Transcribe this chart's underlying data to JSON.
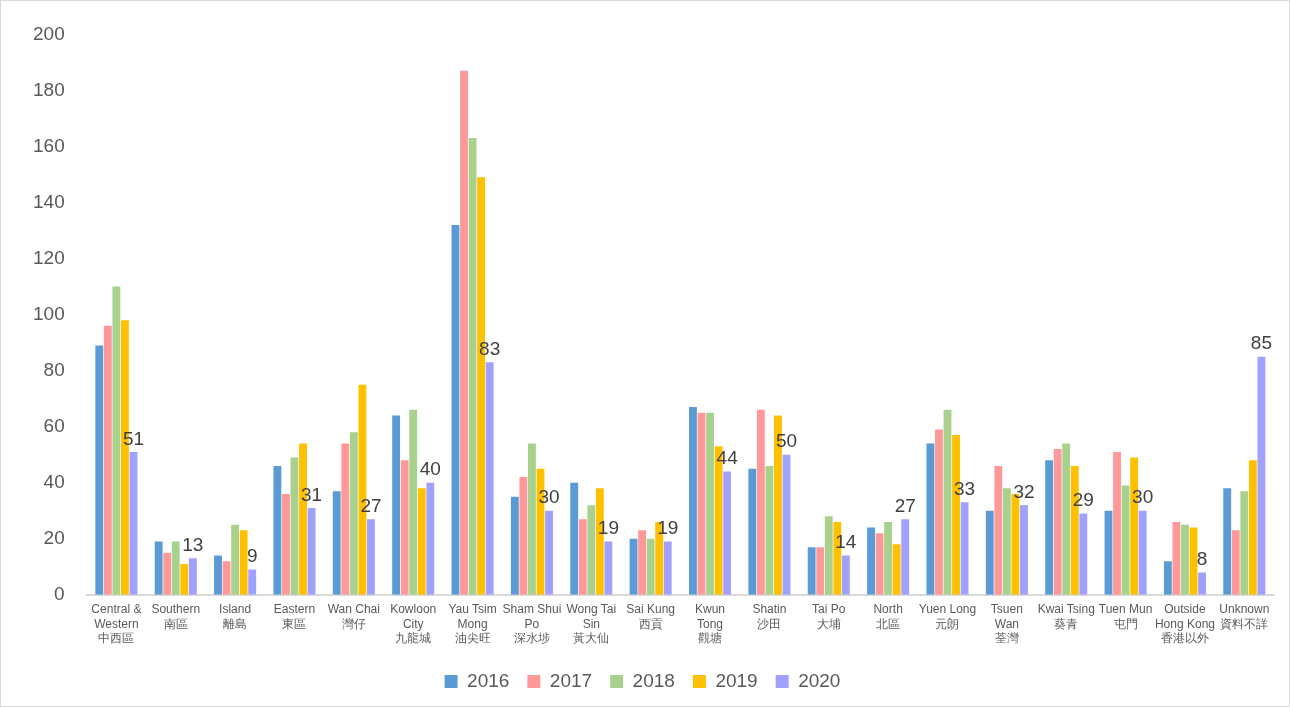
{
  "chart_data": {
    "type": "bar",
    "categories": [
      "Central &\nWestern\n中西區",
      "Southern\n南區",
      "Island\n離島",
      "Eastern\n東區",
      "Wan Chai\n灣仔",
      "Kowloon\nCity\n九龍城",
      "Yau Tsim\nMong\n油尖旺",
      "Sham Shui\nPo\n深水埗",
      "Wong Tai\nSin\n黃大仙",
      "Sai Kung\n西貢",
      "Kwun\nTong\n觀塘",
      "Shatin\n沙田",
      "Tai Po\n大埔",
      "North\n北區",
      "Yuen Long\n元朗",
      "Tsuen\nWan\n荃灣",
      "Kwai Tsing\n葵青",
      "Tuen Mun\n屯門",
      "Outside\nHong Kong\n香港以外",
      "Unknown\n資料不詳"
    ],
    "series": [
      {
        "name": "2016",
        "color": "#5b9bd5",
        "values": [
          89,
          19,
          14,
          46,
          37,
          64,
          132,
          35,
          40,
          20,
          67,
          45,
          17,
          24,
          54,
          30,
          48,
          30,
          12,
          38
        ]
      },
      {
        "name": "2017",
        "color": "#ff9999",
        "values": [
          96,
          15,
          12,
          36,
          54,
          48,
          187,
          42,
          27,
          23,
          65,
          66,
          17,
          22,
          59,
          46,
          52,
          51,
          26,
          23
        ]
      },
      {
        "name": "2018",
        "color": "#a9d18e",
        "values": [
          110,
          19,
          25,
          49,
          58,
          66,
          163,
          54,
          32,
          20,
          65,
          46,
          28,
          26,
          66,
          38,
          54,
          39,
          25,
          37
        ]
      },
      {
        "name": "2019",
        "color": "#ffc000",
        "values": [
          98,
          11,
          23,
          54,
          75,
          38,
          149,
          45,
          38,
          26,
          53,
          64,
          26,
          18,
          57,
          36,
          46,
          49,
          24,
          48
        ]
      },
      {
        "name": "2020",
        "color": "#a0a0ff",
        "values": [
          51,
          13,
          9,
          31,
          27,
          40,
          83,
          30,
          19,
          19,
          44,
          50,
          14,
          27,
          33,
          32,
          29,
          30,
          8,
          85
        ],
        "value_labels": [
          "51",
          "13",
          "9",
          "31",
          "27",
          "40",
          "83",
          "30",
          "19",
          "19",
          "44",
          "50",
          "14",
          "27",
          "33",
          "32",
          "29",
          "30",
          "8",
          "85"
        ]
      }
    ],
    "ylim": [
      0,
      200
    ],
    "yticks": [
      0,
      20,
      40,
      60,
      80,
      100,
      120,
      140,
      160,
      180,
      200
    ],
    "grid": false,
    "legend": "bottom"
  }
}
